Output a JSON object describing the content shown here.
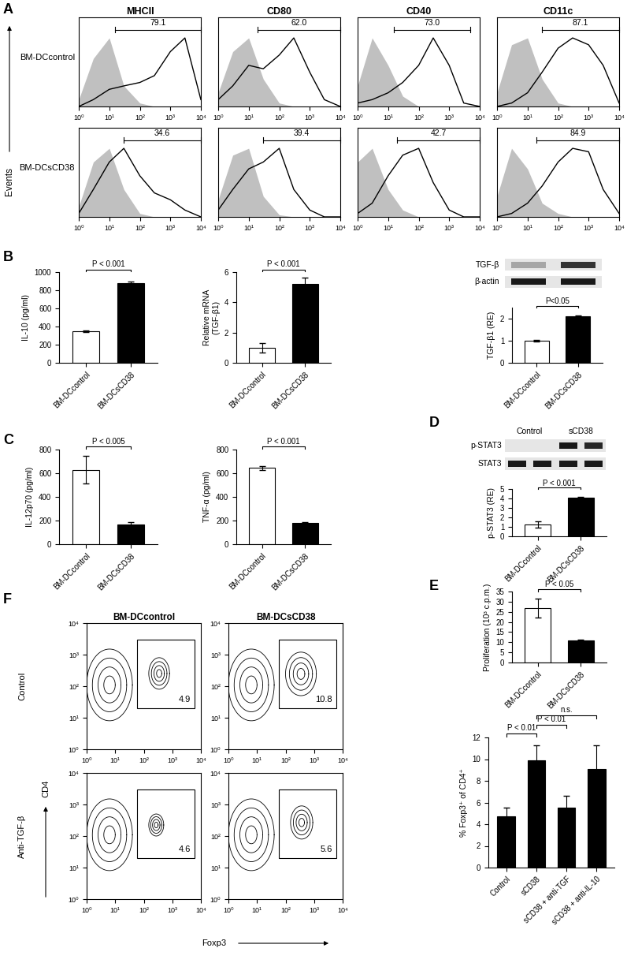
{
  "chart_data": [
    {
      "panel": "A",
      "type": "flow_histogram",
      "y_axis_label": "Events",
      "columns": [
        "MHCII",
        "CD80",
        "CD40",
        "CD11c"
      ],
      "rows": [
        "BM-DCcontrol",
        "BM-DCsCD38"
      ],
      "x": [
        1,
        3,
        10,
        30,
        100,
        300,
        1000,
        3000,
        10000
      ],
      "xlim": [
        1,
        10000
      ],
      "xticks": [
        {
          "value": 1,
          "label": "10⁰"
        },
        {
          "value": 10,
          "label": "10¹"
        },
        {
          "value": 100,
          "label": "10²"
        },
        {
          "value": 1000,
          "label": "10³"
        },
        {
          "value": 10000,
          "label": "10⁴"
        }
      ],
      "ylim": [
        0,
        130
      ],
      "log": "x",
      "tick_labels": "x",
      "colors": [
        "#c0c0c0",
        "#000000"
      ],
      "plots": [
        [
          {
            "isotype": [
              10,
              70,
              100,
              30,
              5,
              0,
              0,
              0,
              0
            ],
            "sample": [
              0,
              10,
              25,
              30,
              35,
              45,
              80,
              100,
              10
            ],
            "gate": [
              15,
              10000
            ],
            "gate_value": 79.1
          },
          {
            "isotype": [
              20,
              80,
              100,
              40,
              5,
              0,
              0,
              0,
              0
            ],
            "sample": [
              10,
              30,
              60,
              55,
              75,
              100,
              50,
              10,
              0
            ],
            "gate": [
              20,
              10000
            ],
            "gate_value": 62.0
          },
          {
            "isotype": [
              30,
              100,
              60,
              15,
              0,
              0,
              0,
              0,
              0
            ],
            "sample": [
              5,
              10,
              20,
              35,
              60,
              100,
              60,
              5,
              0
            ],
            "gate": [
              15,
              5000
            ],
            "gate_value": 73.0
          },
          {
            "isotype": [
              20,
              90,
              100,
              40,
              5,
              0,
              0,
              0,
              0
            ],
            "sample": [
              0,
              5,
              20,
              50,
              85,
              100,
              90,
              60,
              5
            ],
            "gate": [
              30,
              10000
            ],
            "gate_value": 87.1
          }
        ],
        [
          {
            "isotype": [
              15,
              80,
              100,
              40,
              5,
              0,
              0,
              0,
              0
            ],
            "sample": [
              5,
              40,
              80,
              100,
              60,
              35,
              25,
              10,
              0
            ],
            "gate": [
              30,
              10000
            ],
            "gate_value": 34.6
          },
          {
            "isotype": [
              25,
              90,
              100,
              30,
              3,
              0,
              0,
              0,
              0
            ],
            "sample": [
              10,
              40,
              70,
              80,
              100,
              40,
              10,
              0,
              0
            ],
            "gate": [
              30,
              10000
            ],
            "gate_value": 39.4
          },
          {
            "isotype": [
              80,
              100,
              40,
              10,
              0,
              0,
              0,
              0,
              0
            ],
            "sample": [
              5,
              20,
              60,
              90,
              100,
              50,
              10,
              0,
              0
            ],
            "gate": [
              20,
              10000
            ],
            "gate_value": 42.7
          },
          {
            "isotype": [
              30,
              100,
              70,
              20,
              5,
              0,
              0,
              0,
              0
            ],
            "sample": [
              0,
              5,
              20,
              45,
              80,
              100,
              95,
              40,
              5
            ],
            "gate": [
              20,
              10000
            ],
            "gate_value": 84.9
          }
        ]
      ]
    },
    {
      "panel": "B",
      "type": "bar",
      "ylabel": "IL-10 (pg/ml)",
      "categories": [
        "BM-DCcontrol",
        "BM-DCsCD38"
      ],
      "values": [
        350,
        880
      ],
      "errors": [
        10,
        15
      ],
      "colors": [
        "#ffffff",
        "#000000"
      ],
      "ylim": [
        0,
        1000
      ],
      "yticks": [
        0,
        200,
        400,
        600,
        800,
        1000
      ],
      "comparisons": [
        {
          "pair": [
            0,
            1
          ],
          "label": "P < 0.001"
        }
      ]
    },
    {
      "type": "bar",
      "ylabel": "Relative mRNA\n(TGF-β1)",
      "categories": [
        "BM-DCcontrol",
        "BM-DCsCD38"
      ],
      "values": [
        1.0,
        5.2
      ],
      "errors": [
        0.3,
        0.45
      ],
      "colors": [
        "#ffffff",
        "#000000"
      ],
      "ylim": [
        0,
        6
      ],
      "yticks": [
        0,
        2,
        4,
        6
      ],
      "comparisons": [
        {
          "pair": [
            0,
            1
          ],
          "label": "P < 0.001"
        }
      ]
    },
    {
      "type": "blot",
      "rows": [
        {
          "name": "TGF-β",
          "intensity": [
            0.35,
            0.8
          ]
        },
        {
          "name": "β-actin",
          "intensity": [
            0.9,
            0.9
          ]
        }
      ]
    },
    {
      "type": "bar",
      "ylabel": "TGF-β1 (RE)",
      "categories": [
        "BM-DCcontrol",
        "BM-DCsCD38"
      ],
      "values": [
        1.0,
        2.1
      ],
      "errors": [
        0.05,
        0.05
      ],
      "colors": [
        "#ffffff",
        "#000000"
      ],
      "ylim": [
        0,
        2.5
      ],
      "yticks": [
        0,
        1,
        2
      ],
      "comparisons": [
        {
          "pair": [
            0,
            1
          ],
          "label": "P<0.05"
        }
      ]
    },
    {
      "panel": "C",
      "type": "bar",
      "ylabel": "IL-12p70 (pg/ml)",
      "categories": [
        "BM-DCcontrol",
        "BM-DCsCD38"
      ],
      "values": [
        630,
        170
      ],
      "errors": [
        115,
        20
      ],
      "colors": [
        "#ffffff",
        "#000000"
      ],
      "ylim": [
        0,
        800
      ],
      "yticks": [
        0,
        200,
        400,
        600,
        800
      ],
      "comparisons": [
        {
          "pair": [
            0,
            1
          ],
          "label": "P < 0.005"
        }
      ]
    },
    {
      "type": "bar",
      "ylabel": "TNF-α (pg/ml)",
      "categories": [
        "BM-DCcontrol",
        "BM-DCsCD38"
      ],
      "values": [
        645,
        180
      ],
      "errors": [
        15,
        5
      ],
      "colors": [
        "#ffffff",
        "#000000"
      ],
      "ylim": [
        0,
        800
      ],
      "yticks": [
        0,
        200,
        400,
        600,
        800
      ],
      "comparisons": [
        {
          "pair": [
            0,
            1
          ],
          "label": "P < 0.001"
        }
      ]
    },
    {
      "panel": "D",
      "type": "blot",
      "lane_groups": [
        {
          "label": "Control",
          "lanes": 2
        },
        {
          "label": "sCD38",
          "lanes": 2
        }
      ],
      "rows": [
        {
          "name": "p-STAT3",
          "intensity": [
            0.1,
            0.1,
            0.9,
            0.85
          ]
        },
        {
          "name": "STAT3",
          "intensity": [
            0.9,
            0.9,
            0.9,
            0.9
          ]
        }
      ]
    },
    {
      "type": "bar",
      "ylabel": "p-STAT3 (RE)",
      "categories": [
        "BM-DCcontrol",
        "BM-DCsCD38"
      ],
      "values": [
        1.25,
        4.1
      ],
      "errors": [
        0.35,
        0.1
      ],
      "colors": [
        "#ffffff",
        "#000000"
      ],
      "ylim": [
        0,
        5
      ],
      "yticks": [
        0,
        1,
        2,
        3,
        4,
        5
      ],
      "comparisons": [
        {
          "pair": [
            0,
            1
          ],
          "label": "P < 0.001"
        }
      ]
    },
    {
      "panel": "E",
      "type": "bar",
      "ylabel": "Proliferation (10³ c.p.m.)",
      "categories": [
        "BM-DCcontrol",
        "BM-DCsCD38"
      ],
      "values": [
        26.8,
        10.8
      ],
      "errors": [
        4.7,
        0.5
      ],
      "colors": [
        "#ffffff",
        "#000000"
      ],
      "ylim": [
        0,
        35
      ],
      "yticks": [
        0,
        5,
        10,
        15,
        20,
        25,
        30,
        35
      ],
      "comparisons": [
        {
          "pair": [
            0,
            1
          ],
          "label": "P < 0.05"
        }
      ]
    },
    {
      "panel": "F",
      "type": "flow_contour",
      "columns": [
        "BM-DCcontrol",
        "BM-DCsCD38"
      ],
      "rows": [
        "Control",
        "Anti-TGF-β"
      ],
      "xlabel": "Foxp3",
      "ylabel": "CD4",
      "log": true,
      "xlim": [
        1,
        10000
      ],
      "ylim": [
        1,
        10000
      ],
      "xticks": [
        {
          "value": 1,
          "label": "10⁰"
        },
        {
          "value": 10,
          "label": "10¹"
        },
        {
          "value": 100,
          "label": "10²"
        },
        {
          "value": 1000,
          "label": "10³"
        },
        {
          "value": 10000,
          "label": "10⁴"
        }
      ],
      "yticks": [
        {
          "value": 1,
          "label": "10⁰"
        },
        {
          "value": 10,
          "label": "10¹"
        },
        {
          "value": 100,
          "label": "10²"
        },
        {
          "value": 1000,
          "label": "10³"
        },
        {
          "value": 10000,
          "label": "10⁴"
        }
      ],
      "plots": [
        [
          {
            "clusters": [
              {
                "x": [
                  1,
                  40
                ],
                "y": [
                  8,
                  1500
                ]
              },
              {
                "x": [
                  150,
                  800
                ],
                "y": [
                  80,
                  800
                ]
              }
            ],
            "gate": {
              "x": [
                60,
                6000
              ],
              "y": [
                20,
                3000
              ]
            },
            "gate_value": 4.9
          },
          {
            "clusters": [
              {
                "x": [
                  1,
                  40
                ],
                "y": [
                  8,
                  1500
                ]
              },
              {
                "x": [
                  100,
                  1200
                ],
                "y": [
                  50,
                  1200
                ]
              }
            ],
            "gate": {
              "x": [
                60,
                6000
              ],
              "y": [
                20,
                3000
              ]
            },
            "gate_value": 10.8
          }
        ],
        [
          {
            "clusters": [
              {
                "x": [
                  1,
                  40
                ],
                "y": [
                  8,
                  1500
                ]
              },
              {
                "x": [
                  150,
                  500
                ],
                "y": [
                  100,
                  500
                ]
              }
            ],
            "gate": {
              "x": [
                60,
                6000
              ],
              "y": [
                20,
                3000
              ]
            },
            "gate_value": 4.6
          },
          {
            "clusters": [
              {
                "x": [
                  1,
                  40
                ],
                "y": [
                  8,
                  1500
                ]
              },
              {
                "x": [
                  150,
                  900
                ],
                "y": [
                  80,
                  900
                ]
              }
            ],
            "gate": {
              "x": [
                60,
                6000
              ],
              "y": [
                20,
                3000
              ]
            },
            "gate_value": 5.6
          }
        ]
      ]
    },
    {
      "type": "bar",
      "ylabel": "% Foxp3⁺ of CD4⁺",
      "categories": [
        "Control",
        "sCD38",
        "sCD38 + anti-TGF",
        "sCD38 + anti-IL-10"
      ],
      "values": [
        4.7,
        9.9,
        5.5,
        9.1
      ],
      "errors": [
        0.8,
        1.4,
        1.1,
        2.2
      ],
      "color": "#000000",
      "ylim": [
        0,
        12
      ],
      "yticks": [
        0,
        2,
        4,
        6,
        8,
        10,
        12
      ],
      "comparisons": [
        {
          "pair": [
            0,
            1
          ],
          "label": "P < 0.01"
        },
        {
          "pair": [
            1,
            2
          ],
          "label": "P < 0.01"
        },
        {
          "pair": [
            1,
            3
          ],
          "label": "n.s."
        }
      ]
    }
  ]
}
